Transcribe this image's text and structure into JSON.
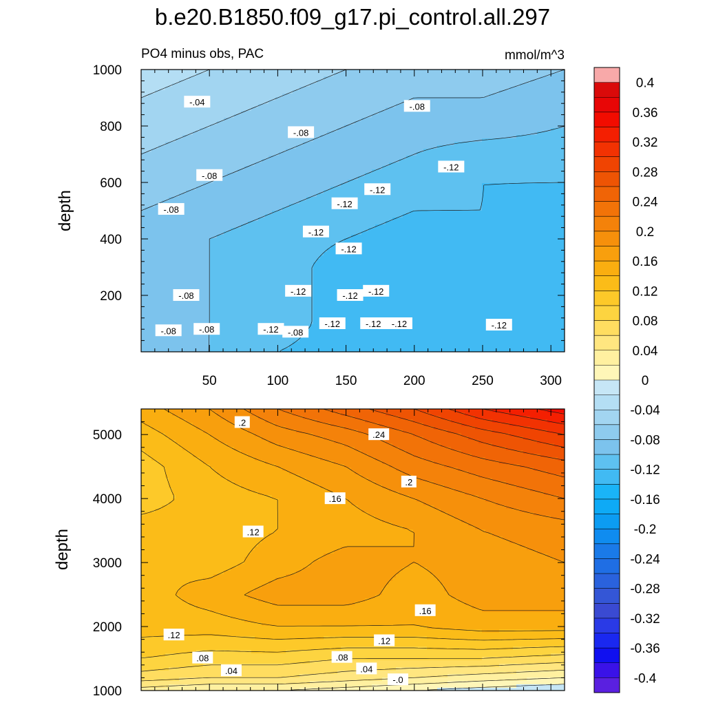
{
  "title": "b.e20.B1850.f09_g17.pi_control.all.297",
  "chart_data": [
    {
      "type": "heatmap",
      "panel": "upper",
      "subtitle_left": "PO4 minus obs, PAC",
      "subtitle_right": "mmol/m^3",
      "ylabel": "depth",
      "xlabel": "",
      "xlim": [
        0,
        310
      ],
      "ylim": [
        1000,
        0
      ],
      "y_reversed": true,
      "xticks": [
        "50",
        "100",
        "150",
        "200",
        "250",
        "300"
      ],
      "yticks": [
        "200",
        "400",
        "600",
        "800",
        "1000"
      ],
      "ytick_values": [
        200,
        400,
        600,
        800,
        1000
      ],
      "xtick_values": [
        50,
        100,
        150,
        200,
        250,
        300
      ],
      "x_grid": [
        0,
        50,
        100,
        150,
        200,
        250,
        310
      ],
      "y_grid": [
        0,
        100,
        200,
        300,
        400,
        500,
        600,
        700,
        800,
        900,
        1000
      ],
      "z": [
        [
          -0.09,
          -0.1,
          -0.12,
          -0.13,
          -0.14,
          -0.13,
          -0.13
        ],
        [
          -0.09,
          -0.1,
          -0.11,
          -0.13,
          -0.14,
          -0.13,
          -0.13
        ],
        [
          -0.09,
          -0.1,
          -0.11,
          -0.13,
          -0.14,
          -0.13,
          -0.13
        ],
        [
          -0.09,
          -0.1,
          -0.11,
          -0.13,
          -0.14,
          -0.13,
          -0.13
        ],
        [
          -0.09,
          -0.1,
          -0.11,
          -0.12,
          -0.13,
          -0.13,
          -0.13
        ],
        [
          -0.08,
          -0.09,
          -0.1,
          -0.11,
          -0.12,
          -0.12,
          -0.13
        ],
        [
          -0.07,
          -0.08,
          -0.09,
          -0.1,
          -0.11,
          -0.12,
          -0.12
        ],
        [
          -0.06,
          -0.07,
          -0.08,
          -0.09,
          -0.1,
          -0.11,
          -0.11
        ],
        [
          -0.05,
          -0.06,
          -0.07,
          -0.08,
          -0.09,
          -0.09,
          -0.1
        ],
        [
          -0.04,
          -0.05,
          -0.06,
          -0.07,
          -0.08,
          -0.08,
          -0.09
        ],
        [
          -0.03,
          -0.04,
          -0.05,
          -0.06,
          -0.07,
          -0.07,
          -0.08
        ]
      ],
      "contour_labels": [
        {
          "text": "-.08",
          "x": 20,
          "y": 75
        },
        {
          "text": "-.08",
          "x": 48,
          "y": 80
        },
        {
          "text": "-.12",
          "x": 95,
          "y": 80
        },
        {
          "text": "-.08",
          "x": 113,
          "y": 70
        },
        {
          "text": "-.12",
          "x": 140,
          "y": 100
        },
        {
          "text": "-.12",
          "x": 170,
          "y": 100
        },
        {
          "text": "-.12",
          "x": 189,
          "y": 100
        },
        {
          "text": "-.12",
          "x": 262,
          "y": 95
        },
        {
          "text": "-.08",
          "x": 33,
          "y": 200
        },
        {
          "text": "-.12",
          "x": 115,
          "y": 215
        },
        {
          "text": "-.12",
          "x": 153,
          "y": 200
        },
        {
          "text": "-.12",
          "x": 172,
          "y": 215
        },
        {
          "text": "-.12",
          "x": 152,
          "y": 365
        },
        {
          "text": "-.12",
          "x": 128,
          "y": 425
        },
        {
          "text": "-.08",
          "x": 22,
          "y": 505
        },
        {
          "text": "-.12",
          "x": 149,
          "y": 525
        },
        {
          "text": "-.12",
          "x": 173,
          "y": 575
        },
        {
          "text": "-.08",
          "x": 50,
          "y": 625
        },
        {
          "text": "-.12",
          "x": 227,
          "y": 655
        },
        {
          "text": "-.08",
          "x": 117,
          "y": 777
        },
        {
          "text": "-.08",
          "x": 202,
          "y": 870
        },
        {
          "text": "-.04",
          "x": 41,
          "y": 885
        }
      ]
    },
    {
      "type": "heatmap",
      "panel": "lower",
      "ylabel": "depth",
      "xlabel": "",
      "xlim": [
        0,
        310
      ],
      "ylim": [
        5400,
        1000
      ],
      "y_reversed": true,
      "yticks": [
        "1000",
        "2000",
        "3000",
        "4000",
        "5000"
      ],
      "ytick_values": [
        1000,
        2000,
        3000,
        4000,
        5000
      ],
      "x_grid": [
        0,
        50,
        100,
        150,
        200,
        250,
        310
      ],
      "y_grid": [
        1000,
        1200,
        1500,
        2000,
        2500,
        3000,
        3500,
        4000,
        4500,
        5000,
        5400
      ],
      "z": [
        [
          0.03,
          0.02,
          0.02,
          0.01,
          0.0,
          -0.01,
          -0.02
        ],
        [
          0.07,
          0.06,
          0.06,
          0.05,
          0.04,
          0.03,
          0.02
        ],
        [
          0.1,
          0.09,
          0.09,
          0.08,
          0.08,
          0.08,
          0.07
        ],
        [
          0.13,
          0.13,
          0.14,
          0.14,
          0.14,
          0.15,
          0.15
        ],
        [
          0.13,
          0.15,
          0.17,
          0.17,
          0.15,
          0.17,
          0.17
        ],
        [
          0.14,
          0.13,
          0.15,
          0.17,
          0.16,
          0.17,
          0.18
        ],
        [
          0.13,
          0.13,
          0.14,
          0.15,
          0.16,
          0.18,
          0.19
        ],
        [
          0.11,
          0.13,
          0.14,
          0.16,
          0.18,
          0.2,
          0.22
        ],
        [
          0.11,
          0.14,
          0.16,
          0.18,
          0.21,
          0.23,
          0.25
        ],
        [
          0.13,
          0.16,
          0.19,
          0.21,
          0.24,
          0.27,
          0.3
        ],
        [
          0.15,
          0.18,
          0.22,
          0.25,
          0.28,
          0.32,
          0.35
        ]
      ],
      "contour_labels": [
        {
          "text": "-.0",
          "x": 188,
          "y": 1170
        },
        {
          "text": ".04",
          "x": 66,
          "y": 1310
        },
        {
          "text": ".04",
          "x": 165,
          "y": 1340
        },
        {
          "text": ".08",
          "x": 45,
          "y": 1510
        },
        {
          "text": ".08",
          "x": 147,
          "y": 1520
        },
        {
          "text": ".12",
          "x": 178,
          "y": 1780
        },
        {
          "text": ".12",
          "x": 24,
          "y": 1870
        },
        {
          "text": ".16",
          "x": 208,
          "y": 2250
        },
        {
          "text": ".12",
          "x": 82,
          "y": 3480
        },
        {
          "text": ".16",
          "x": 142,
          "y": 4000
        },
        {
          "text": ".2",
          "x": 196,
          "y": 4260
        },
        {
          "text": ".24",
          "x": 174,
          "y": 5000
        },
        {
          "text": ".2",
          "x": 74,
          "y": 5190
        }
      ]
    }
  ],
  "colorbar": {
    "labels": [
      "0.4",
      "0.36",
      "0.32",
      "0.28",
      "0.24",
      "0.2",
      "0.16",
      "0.12",
      "0.08",
      "0.04",
      "0",
      "-0.04",
      "-0.08",
      "-0.12",
      "-0.16",
      "-0.2",
      "-0.24",
      "-0.28",
      "-0.32",
      "-0.36",
      "-0.4"
    ],
    "bins": [
      0.42,
      0.4,
      0.38,
      0.36,
      0.34,
      0.32,
      0.3,
      0.28,
      0.26,
      0.24,
      0.22,
      0.2,
      0.18,
      0.16,
      0.14,
      0.12,
      0.1,
      0.08,
      0.06,
      0.04,
      0.02,
      0.0,
      -0.02,
      -0.04,
      -0.06,
      -0.08,
      -0.1,
      -0.12,
      -0.14,
      -0.16,
      -0.18,
      -0.2,
      -0.22,
      -0.24,
      -0.26,
      -0.28,
      -0.3,
      -0.32,
      -0.34,
      -0.36,
      -0.38,
      -0.4
    ]
  },
  "colors": {
    "neg": [
      "#c6e6f6",
      "#b4def4",
      "#a2d5f1",
      "#8ecbee",
      "#7cc3ed",
      "#5ec1f0",
      "#41baf3",
      "#1ab4f7",
      "#0eaaf6",
      "#0c9cf2",
      "#0f8cf0",
      "#1a7ae8",
      "#1f6ee4",
      "#2a62dd",
      "#3456d6",
      "#3a4ad2",
      "#2a3ae6",
      "#1a28f0",
      "#1010f0",
      "#3a12e8",
      "#5a20e0",
      "#7a2ae6"
    ],
    "pos": [
      "#fff6b8",
      "#fff0a0",
      "#ffe680",
      "#ffdd60",
      "#fdd440",
      "#fdc929",
      "#fbbc18",
      "#faae10",
      "#f89f0d",
      "#f6900b",
      "#f4820a",
      "#f27308",
      "#f06406",
      "#ee5404",
      "#f04402",
      "#f23202",
      "#f41f01",
      "#f20c00",
      "#e80606",
      "#da0a0a",
      "#cc1010",
      "#d83a3a",
      "#ec7070",
      "#f8a9a9"
    ]
  }
}
